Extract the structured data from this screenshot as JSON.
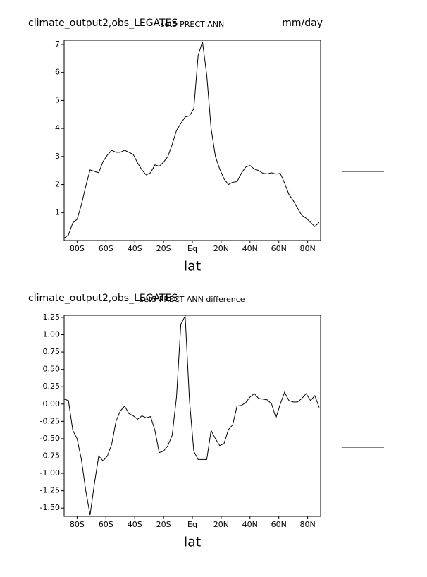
{
  "chart_data": [
    {
      "type": "line",
      "title": "climate_output2,obs_LEGATES",
      "subtitle": "set5 PRECT ANN",
      "units": "mm/day",
      "xlabel": "lat",
      "x": [
        -89,
        -86,
        -83,
        -80,
        -77,
        -74,
        -71,
        -68,
        -65,
        -62,
        -59,
        -56,
        -53,
        -50,
        -47,
        -44,
        -41,
        -38,
        -35,
        -32,
        -29,
        -26,
        -23,
        -20,
        -17,
        -14,
        -11,
        -8,
        -5,
        -2,
        1,
        4,
        7,
        10,
        13,
        16,
        19,
        22,
        25,
        28,
        31,
        34,
        37,
        40,
        43,
        46,
        49,
        52,
        55,
        58,
        61,
        64,
        67,
        70,
        73,
        76,
        79,
        82,
        85,
        88
      ],
      "series": [
        {
          "color": "#000000",
          "values": [
            0.08,
            0.2,
            0.63,
            0.76,
            1.28,
            1.94,
            2.52,
            2.47,
            2.42,
            2.82,
            3.05,
            3.22,
            3.15,
            3.15,
            3.22,
            3.15,
            3.07,
            2.77,
            2.52,
            2.34,
            2.42,
            2.7,
            2.65,
            2.8,
            3.0,
            3.43,
            3.93,
            4.18,
            4.41,
            4.45,
            4.7,
            6.6,
            7.1,
            5.9,
            4.0,
            3.0,
            2.55,
            2.2,
            2.0,
            2.08,
            2.1,
            2.4,
            2.62,
            2.68,
            2.55,
            2.5,
            2.4,
            2.38,
            2.42,
            2.37,
            2.4,
            2.05,
            1.65,
            1.43,
            1.15,
            0.9,
            0.8,
            0.65,
            0.5,
            0.65
          ]
        }
      ],
      "xlim": [
        -89,
        89
      ],
      "xticks": [
        {
          "value": -80,
          "label": "80S"
        },
        {
          "value": -60,
          "label": "60S"
        },
        {
          "value": -40,
          "label": "40S"
        },
        {
          "value": -20,
          "label": "20S"
        },
        {
          "value": 0,
          "label": "Eq"
        },
        {
          "value": 20,
          "label": "20N"
        },
        {
          "value": 40,
          "label": "40N"
        },
        {
          "value": 60,
          "label": "60N"
        },
        {
          "value": 80,
          "label": "80N"
        }
      ],
      "ylim": [
        0,
        7.15
      ],
      "yticks": [
        1,
        2,
        3,
        4,
        5,
        6,
        7
      ]
    },
    {
      "type": "line",
      "title": "climate_output2,obs_LEGATES",
      "subtitle": "set5 PRECT ANN difference",
      "xlabel": "lat",
      "x": [
        -89,
        -86,
        -83,
        -80,
        -77,
        -74,
        -71,
        -68,
        -65,
        -62,
        -59,
        -56,
        -53,
        -50,
        -47,
        -44,
        -41,
        -38,
        -35,
        -32,
        -29,
        -26,
        -23,
        -20,
        -17,
        -14,
        -11,
        -8,
        -5,
        -2,
        1,
        4,
        7,
        10,
        13,
        16,
        19,
        22,
        25,
        28,
        31,
        34,
        37,
        40,
        43,
        46,
        49,
        52,
        55,
        58,
        61,
        64,
        67,
        70,
        73,
        76,
        79,
        82,
        85,
        88
      ],
      "series": [
        {
          "color": "#000000",
          "values": [
            0.07,
            0.05,
            -0.38,
            -0.5,
            -0.8,
            -1.25,
            -1.6,
            -1.15,
            -0.75,
            -0.82,
            -0.75,
            -0.58,
            -0.25,
            -0.1,
            -0.03,
            -0.14,
            -0.17,
            -0.22,
            -0.17,
            -0.2,
            -0.18,
            -0.38,
            -0.7,
            -0.68,
            -0.6,
            -0.45,
            0.1,
            1.15,
            1.27,
            0.05,
            -0.68,
            -0.8,
            -0.8,
            -0.8,
            -0.38,
            -0.5,
            -0.6,
            -0.57,
            -0.37,
            -0.3,
            -0.03,
            -0.02,
            0.02,
            0.1,
            0.15,
            0.08,
            0.07,
            0.06,
            0.0,
            -0.2,
            0.0,
            0.17,
            0.05,
            0.03,
            0.03,
            0.08,
            0.15,
            0.05,
            0.12,
            -0.05
          ]
        }
      ],
      "xlim": [
        -89,
        89
      ],
      "xticks": [
        {
          "value": -80,
          "label": "80S"
        },
        {
          "value": -60,
          "label": "60S"
        },
        {
          "value": -40,
          "label": "40S"
        },
        {
          "value": -20,
          "label": "20S"
        },
        {
          "value": 0,
          "label": "Eq"
        },
        {
          "value": 20,
          "label": "20N"
        },
        {
          "value": 40,
          "label": "40N"
        },
        {
          "value": 60,
          "label": "60N"
        },
        {
          "value": 80,
          "label": "80N"
        }
      ],
      "ylim": [
        -1.62,
        1.28
      ],
      "yticks": [
        1.25,
        {
          "value": 1,
          "label": "1.00"
        },
        0.75,
        {
          "value": 0.5,
          "label": "0.50"
        },
        0.25,
        {
          "value": 0,
          "label": "0.00"
        },
        -0.25,
        {
          "value": -0.5,
          "label": "-0.50"
        },
        -0.75,
        {
          "value": -1,
          "label": "-1.00"
        },
        -1.25,
        {
          "value": -1.5,
          "label": "-1.50"
        }
      ]
    }
  ]
}
